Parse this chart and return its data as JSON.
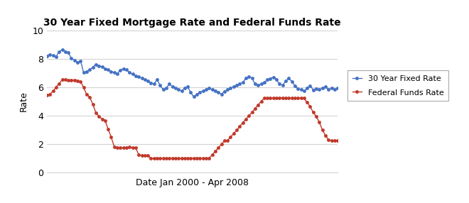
{
  "title": "30 Year Fixed Mortgage Rate and Federal Funds Rate",
  "xlabel": "Date Jan 2000 - Apr 2008",
  "ylabel": "Rate",
  "ylim": [
    0,
    10
  ],
  "yticks": [
    0,
    2,
    4,
    6,
    8,
    10
  ],
  "legend_labels": [
    "30 Year Fixed Rate",
    "Federal Funds Rate"
  ],
  "mortgage_color": "#4472C4",
  "fed_color": "#C0392B",
  "background_color": "#FFFFFF",
  "grid_color": "#D3D3D3",
  "mortgage_rates": [
    8.21,
    8.32,
    8.24,
    8.15,
    8.52,
    8.64,
    8.52,
    8.43,
    8.03,
    7.91,
    7.76,
    7.86,
    7.03,
    7.12,
    7.24,
    7.42,
    7.61,
    7.52,
    7.43,
    7.32,
    7.23,
    7.12,
    7.03,
    6.97,
    7.22,
    7.31,
    7.24,
    7.03,
    6.93,
    6.82,
    6.74,
    6.65,
    6.54,
    6.43,
    6.32,
    6.24,
    6.54,
    6.13,
    5.83,
    5.94,
    6.24,
    6.03,
    5.93,
    5.84,
    5.74,
    5.93,
    6.03,
    5.63,
    5.33,
    5.52,
    5.63,
    5.74,
    5.83,
    5.94,
    5.84,
    5.74,
    5.63,
    5.52,
    5.72,
    5.83,
    5.94,
    6.03,
    6.14,
    6.24,
    6.35,
    6.63,
    6.74,
    6.65,
    6.24,
    6.14,
    6.24,
    6.35,
    6.53,
    6.62,
    6.71,
    6.53,
    6.23,
    6.14,
    6.43,
    6.63,
    6.42,
    6.12,
    5.92,
    5.83,
    5.74,
    5.93,
    6.12,
    5.82,
    5.92,
    5.83,
    5.93,
    6.04,
    5.83,
    5.94,
    5.83,
    5.93
  ],
  "fed_rates": [
    5.45,
    5.52,
    5.73,
    6.02,
    6.27,
    6.53,
    6.54,
    6.5,
    6.52,
    6.51,
    6.47,
    6.4,
    5.98,
    5.49,
    5.31,
    4.8,
    4.21,
    3.97,
    3.77,
    3.65,
    3.07,
    2.49,
    1.82,
    1.76,
    1.75,
    1.75,
    1.74,
    1.79,
    1.76,
    1.75,
    1.24,
    1.22,
    1.2,
    1.19,
    1.0,
    0.98,
    1.0,
    1.01,
    1.0,
    1.0,
    1.0,
    1.01,
    1.0,
    1.0,
    1.0,
    1.0,
    1.0,
    1.0,
    1.0,
    1.01,
    1.0,
    1.0,
    1.0,
    1.02,
    1.25,
    1.49,
    1.75,
    1.98,
    2.25,
    2.25,
    2.5,
    2.75,
    2.98,
    3.25,
    3.51,
    3.76,
    4.0,
    4.25,
    4.51,
    4.75,
    5.02,
    5.24,
    5.25,
    5.26,
    5.25,
    5.25,
    5.26,
    5.25,
    5.26,
    5.26,
    5.25,
    5.24,
    5.25,
    5.26,
    5.25,
    4.94,
    4.65,
    4.24,
    3.94,
    3.54,
    3.0,
    2.61,
    2.3,
    2.25,
    2.26,
    2.25
  ]
}
